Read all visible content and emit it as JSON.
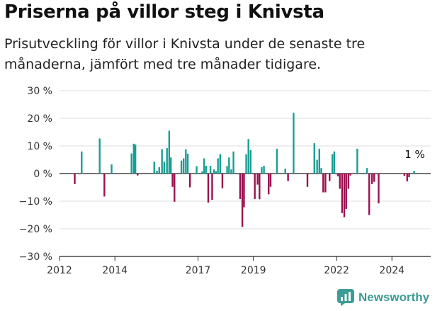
{
  "chart_data": {
    "type": "bar",
    "title": "Priserna på villor steg i Knivsta",
    "subtitle": "Prisutveckling för villor i Knivsta under de senaste tre månaderna, jämfört med tre månader tidigare.",
    "xlabel": "",
    "ylabel": "",
    "ylim": [
      -30,
      30
    ],
    "y_ticks": [
      30,
      20,
      10,
      0,
      -10,
      -20,
      -30
    ],
    "y_tick_labels": [
      "30 %",
      "20 %",
      "10 %",
      "0 %",
      "−10 %",
      "−20 %",
      "−30 %"
    ],
    "x_ticks": [
      2012,
      2014,
      2017,
      2019,
      2022,
      2024
    ],
    "x_tick_labels": [
      "2012",
      "2014",
      "2017",
      "2019",
      "2022",
      "2024"
    ],
    "x_range": [
      2012.0,
      2025.4
    ],
    "positive_color": "#1a9e94",
    "negative_color": "#9b1150",
    "annotation": {
      "text": "1 %",
      "x": 2024.8,
      "value": 1
    },
    "series": [
      {
        "name": "Prisutveckling",
        "points": [
          {
            "x": 2012.55,
            "value": -3.8
          },
          {
            "x": 2012.8,
            "value": 8.0
          },
          {
            "x": 2013.45,
            "value": 12.7
          },
          {
            "x": 2013.62,
            "value": -8.3
          },
          {
            "x": 2013.88,
            "value": 3.3
          },
          {
            "x": 2014.6,
            "value": 7.3
          },
          {
            "x": 2014.68,
            "value": 10.8
          },
          {
            "x": 2014.74,
            "value": 10.5
          },
          {
            "x": 2014.82,
            "value": -0.7
          },
          {
            "x": 2015.42,
            "value": 4.3
          },
          {
            "x": 2015.52,
            "value": 1.0
          },
          {
            "x": 2015.6,
            "value": 2.3
          },
          {
            "x": 2015.7,
            "value": 8.8
          },
          {
            "x": 2015.78,
            "value": 4.3
          },
          {
            "x": 2015.88,
            "value": 9.2
          },
          {
            "x": 2015.96,
            "value": 15.5
          },
          {
            "x": 2016.02,
            "value": 5.8
          },
          {
            "x": 2016.08,
            "value": -4.8
          },
          {
            "x": 2016.15,
            "value": -10.2
          },
          {
            "x": 2016.4,
            "value": 4.7
          },
          {
            "x": 2016.48,
            "value": 5.5
          },
          {
            "x": 2016.56,
            "value": 8.8
          },
          {
            "x": 2016.63,
            "value": 7.2
          },
          {
            "x": 2016.71,
            "value": -5.0
          },
          {
            "x": 2016.95,
            "value": 2.7
          },
          {
            "x": 2017.15,
            "value": 0.8
          },
          {
            "x": 2017.22,
            "value": 5.5
          },
          {
            "x": 2017.29,
            "value": 2.8
          },
          {
            "x": 2017.37,
            "value": -10.5
          },
          {
            "x": 2017.45,
            "value": 2.8
          },
          {
            "x": 2017.51,
            "value": -9.5
          },
          {
            "x": 2017.58,
            "value": 1.5
          },
          {
            "x": 2017.65,
            "value": 0.8
          },
          {
            "x": 2017.72,
            "value": 5.5
          },
          {
            "x": 2017.8,
            "value": 7.0
          },
          {
            "x": 2017.88,
            "value": -5.3
          },
          {
            "x": 2018.05,
            "value": 2.7
          },
          {
            "x": 2018.12,
            "value": 5.8
          },
          {
            "x": 2018.2,
            "value": 1.5
          },
          {
            "x": 2018.28,
            "value": 8.0
          },
          {
            "x": 2018.52,
            "value": -9.2
          },
          {
            "x": 2018.6,
            "value": -19.3
          },
          {
            "x": 2018.66,
            "value": -12.2
          },
          {
            "x": 2018.74,
            "value": 7.0
          },
          {
            "x": 2018.82,
            "value": 12.5
          },
          {
            "x": 2018.9,
            "value": 8.5
          },
          {
            "x": 2019.05,
            "value": -9.2
          },
          {
            "x": 2019.15,
            "value": -4.0
          },
          {
            "x": 2019.22,
            "value": -9.3
          },
          {
            "x": 2019.3,
            "value": 2.3
          },
          {
            "x": 2019.38,
            "value": 2.8
          },
          {
            "x": 2019.55,
            "value": -7.5
          },
          {
            "x": 2019.62,
            "value": -4.8
          },
          {
            "x": 2019.85,
            "value": 9.0
          },
          {
            "x": 2020.15,
            "value": 1.8
          },
          {
            "x": 2020.25,
            "value": -2.7
          },
          {
            "x": 2020.45,
            "value": 22.0
          },
          {
            "x": 2020.95,
            "value": -4.8
          },
          {
            "x": 2021.2,
            "value": 11.0
          },
          {
            "x": 2021.3,
            "value": 5.0
          },
          {
            "x": 2021.38,
            "value": 9.0
          },
          {
            "x": 2021.45,
            "value": 2.0
          },
          {
            "x": 2021.52,
            "value": -6.8
          },
          {
            "x": 2021.6,
            "value": -6.8
          },
          {
            "x": 2021.75,
            "value": -2.7
          },
          {
            "x": 2021.85,
            "value": 7.0
          },
          {
            "x": 2021.92,
            "value": 8.0
          },
          {
            "x": 2022.05,
            "value": -1.0
          },
          {
            "x": 2022.12,
            "value": -5.5
          },
          {
            "x": 2022.2,
            "value": -14.3
          },
          {
            "x": 2022.28,
            "value": -15.8
          },
          {
            "x": 2022.35,
            "value": -12.8
          },
          {
            "x": 2022.43,
            "value": -5.5
          },
          {
            "x": 2022.5,
            "value": -0.7
          },
          {
            "x": 2022.75,
            "value": 9.0
          },
          {
            "x": 2023.1,
            "value": 2.0
          },
          {
            "x": 2023.18,
            "value": -15.0
          },
          {
            "x": 2023.28,
            "value": -3.8
          },
          {
            "x": 2023.36,
            "value": -3.0
          },
          {
            "x": 2023.52,
            "value": -10.8
          },
          {
            "x": 2024.45,
            "value": -0.8
          },
          {
            "x": 2024.55,
            "value": -2.8
          },
          {
            "x": 2024.62,
            "value": -1.3
          },
          {
            "x": 2024.8,
            "value": 1.0
          }
        ]
      }
    ]
  },
  "brand": {
    "name": "Newsworthy",
    "color": "#3d9c95"
  }
}
